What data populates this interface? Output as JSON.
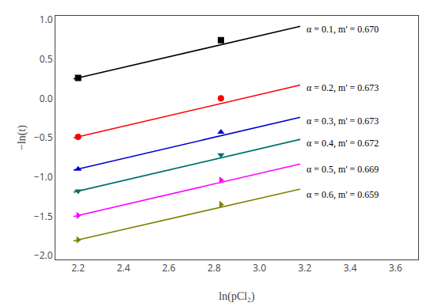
{
  "chart_data": {
    "type": "line",
    "xlabel": "ln(pCl₂)",
    "ylabel": "−ln(t)",
    "xlim": [
      2.1,
      3.7
    ],
    "ylim": [
      -2.05,
      1.05
    ],
    "xticks": [
      2.2,
      2.4,
      2.6,
      2.8,
      {
        "value": 3.0,
        "label": "3.0"
      },
      3.2,
      3.4,
      3.6
    ],
    "yticks": [
      {
        "value": -2.0,
        "label": "−2.0"
      },
      {
        "value": -1.5,
        "label": "−1.5"
      },
      {
        "value": -1.0,
        "label": "−1.0"
      },
      {
        "value": -0.5,
        "label": "−0.5"
      },
      {
        "value": 0.0,
        "label": "0.0"
      },
      {
        "value": 0.5,
        "label": "0.5"
      },
      {
        "value": 1.0,
        "label": "1.0"
      }
    ],
    "grid": false,
    "series": [
      {
        "color": "#000000",
        "marker": "square",
        "x": [
          2.2,
          2.83
        ],
        "values": [
          0.26,
          0.74
        ],
        "line_x": [
          2.18,
          3.18
        ],
        "line_values": [
          0.2466,
          0.9166
        ]
      },
      {
        "color": "#ff0000",
        "marker": "circle",
        "x": [
          2.2,
          2.83
        ],
        "values": [
          -0.49,
          0.0
        ],
        "line_x": [
          2.18,
          3.18
        ],
        "line_values": [
          -0.50346,
          0.16954
        ]
      },
      {
        "color": "#0000cc",
        "marker": "triangle-up",
        "x": [
          2.2,
          2.83
        ],
        "values": [
          -0.9,
          -0.43
        ],
        "line_x": [
          2.18,
          3.18
        ],
        "line_values": [
          -0.91346,
          -0.24046
        ]
      },
      {
        "color": "#007070",
        "marker": "triangle-down",
        "x": [
          2.2,
          2.83
        ],
        "values": [
          -1.18,
          -0.72
        ],
        "line_x": [
          2.18,
          3.18
        ],
        "line_values": [
          -1.19344,
          -0.52144
        ]
      },
      {
        "color": "#ff00ff",
        "marker": "triangle-right",
        "x": [
          2.2,
          2.83
        ],
        "values": [
          -1.49,
          -1.04
        ],
        "line_x": [
          2.18,
          3.18
        ],
        "line_values": [
          -1.50338,
          -0.83438
        ]
      },
      {
        "color": "#808000",
        "marker": "triangle-right",
        "x": [
          2.2,
          2.83
        ],
        "values": [
          -1.8,
          -1.35
        ],
        "line_x": [
          2.18,
          3.18
        ],
        "line_values": [
          -1.81318,
          -1.15418
        ]
      }
    ],
    "annotations": [
      {
        "text": "α = 0.1, m' = 0.670",
        "x": 3.2,
        "y": 0.88
      },
      {
        "text": "α = 0.2, m' = 0.673",
        "x": 3.2,
        "y": 0.13
      },
      {
        "text": "α = 0.3, m' = 0.673",
        "x": 3.2,
        "y": -0.29
      },
      {
        "text": "α = 0.4, m' = 0.672",
        "x": 3.2,
        "y": -0.57
      },
      {
        "text": "α = 0.5, m' = 0.669",
        "x": 3.2,
        "y": -0.9
      },
      {
        "text": "α = 0.6, m' = 0.659",
        "x": 3.2,
        "y": -1.22
      }
    ]
  }
}
